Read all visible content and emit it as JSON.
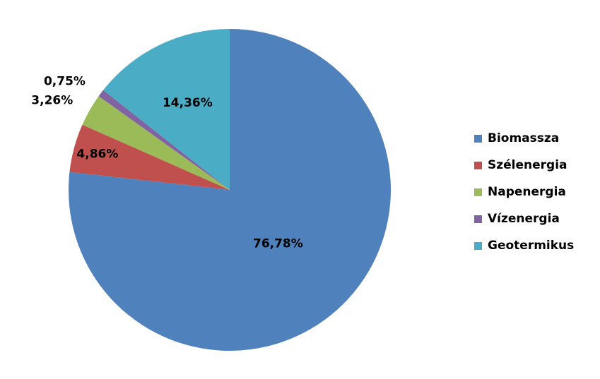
{
  "chart_data": {
    "type": "pie",
    "categories": [
      "Biomassza",
      "Szélenergia",
      "Napenergia",
      "Vízenergia",
      "Geotermikus"
    ],
    "values": [
      76.78,
      4.86,
      3.26,
      0.75,
      14.36
    ],
    "value_labels": [
      "76,78%",
      "4,86%",
      "3,26%",
      "0,75%",
      "14,36%"
    ],
    "colors": [
      "#4f81bd",
      "#c0504d",
      "#9bbb59",
      "#8064a2",
      "#4bacc6"
    ],
    "legend": "right"
  }
}
